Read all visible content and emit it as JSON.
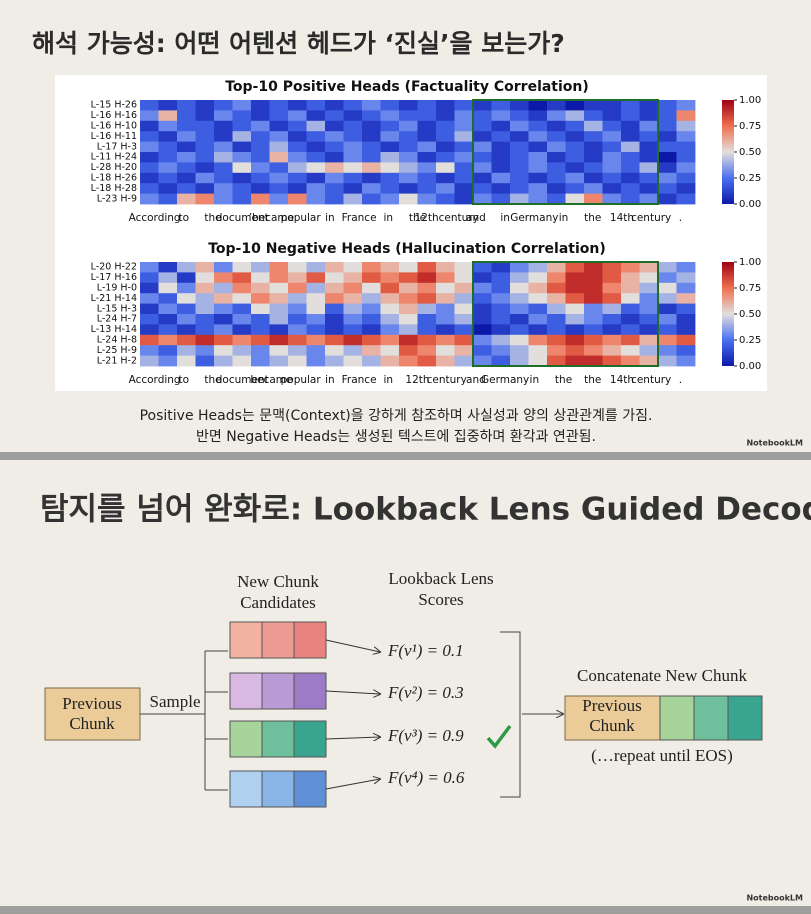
{
  "slides": [
    {
      "title": "해석 가능성: 어떤 어텐션 헤드가 ‘진실’을 보는가?",
      "caption": [
        "Positive Heads는 문맥(Context)을 강하게 참조하며 사실성과 양의 상관관계를 가짐.",
        "반면 Negative Heads는 생성된 텍스트에 집중하며 환각과 연관됨."
      ],
      "brand": "NotebookLM"
    },
    {
      "title": "탐지를 넘어 완화로: Lookback Lens Guided Decoding",
      "previous": [
        "Previous",
        "Chunk"
      ],
      "sample": "Sample",
      "candidates_title": [
        "New Chunk",
        "Candidates"
      ],
      "scores_title": [
        "Lookback Lens",
        "Scores"
      ],
      "candidates": [
        {
          "score": "F(v¹) = 0.1",
          "colors": [
            "#f3b19f",
            "#ee9b93",
            "#e8827f"
          ]
        },
        {
          "score": "F(v²) = 0.3",
          "colors": [
            "#d9b9e1",
            "#ba9bd6",
            "#9c7cc7"
          ]
        },
        {
          "score": "F(v³) = 0.9",
          "colors": [
            "#a7d49b",
            "#70bf9c",
            "#3aa58f"
          ]
        },
        {
          "score": "F(v⁴) = 0.6",
          "colors": [
            "#afd0ef",
            "#89b5e6",
            "#5f90d6"
          ]
        }
      ],
      "concat_title": "Concatenate New Chunk",
      "repeat": "(…repeat until EOS)",
      "brand": "NotebookLM"
    }
  ],
  "chart_data": [
    {
      "type": "heatmap",
      "title": "Top-10 Positive Heads (Factuality Correlation)",
      "rows": [
        "L-15 H-26",
        "L-16 H-16",
        "L-16 H-10",
        "L-16 H-11",
        "L-17 H-3",
        "L-11 H-24",
        "L-28 H-20",
        "L-18 H-26",
        "L-18 H-28",
        "L-23 H-9"
      ],
      "tokens": [
        "According",
        "to",
        "the",
        "document",
        "’became",
        "popular",
        "in",
        "France",
        "in",
        "the",
        "12thcentury",
        "and",
        "in",
        "Germany",
        "in",
        "the",
        "14th",
        "century",
        "."
      ],
      "values": [
        [
          0.2,
          0.1,
          0.2,
          0.1,
          0.2,
          0.3,
          0.1,
          0.2,
          0.1,
          0.2,
          0.1,
          0.2,
          0.3,
          0.2,
          0.1,
          0.2,
          0.1,
          0.2,
          0.1,
          0.2,
          0.1,
          0.0,
          0.1,
          0.0,
          0.1,
          0.1,
          0.2,
          0.1,
          0.2,
          0.3
        ],
        [
          0.3,
          0.6,
          0.2,
          0.1,
          0.3,
          0.2,
          0.1,
          0.2,
          0.3,
          0.1,
          0.2,
          0.1,
          0.2,
          0.3,
          0.2,
          0.2,
          0.1,
          0.3,
          0.2,
          0.3,
          0.2,
          0.1,
          0.3,
          0.4,
          0.2,
          0.1,
          0.2,
          0.1,
          0.2,
          0.7
        ],
        [
          0.1,
          0.3,
          0.2,
          0.2,
          0.1,
          0.2,
          0.3,
          0.1,
          0.2,
          0.4,
          0.1,
          0.2,
          0.1,
          0.2,
          0.3,
          0.1,
          0.2,
          0.3,
          0.2,
          0.1,
          0.3,
          0.2,
          0.1,
          0.2,
          0.4,
          0.2,
          0.1,
          0.3,
          0.2,
          0.4
        ],
        [
          0.2,
          0.1,
          0.3,
          0.2,
          0.1,
          0.4,
          0.2,
          0.3,
          0.1,
          0.2,
          0.3,
          0.2,
          0.1,
          0.3,
          0.2,
          0.1,
          0.2,
          0.4,
          0.1,
          0.2,
          0.1,
          0.3,
          0.2,
          0.1,
          0.2,
          0.3,
          0.1,
          0.2,
          0.1,
          0.3
        ],
        [
          0.3,
          0.2,
          0.1,
          0.2,
          0.3,
          0.1,
          0.2,
          0.4,
          0.2,
          0.1,
          0.2,
          0.3,
          0.2,
          0.1,
          0.2,
          0.3,
          0.1,
          0.2,
          0.3,
          0.1,
          0.2,
          0.1,
          0.3,
          0.2,
          0.1,
          0.2,
          0.4,
          0.1,
          0.2,
          0.2
        ],
        [
          0.1,
          0.2,
          0.3,
          0.2,
          0.4,
          0.3,
          0.2,
          0.6,
          0.3,
          0.2,
          0.1,
          0.3,
          0.2,
          0.4,
          0.3,
          0.1,
          0.2,
          0.3,
          0.2,
          0.1,
          0.2,
          0.3,
          0.1,
          0.2,
          0.1,
          0.3,
          0.2,
          0.1,
          0.0,
          0.2
        ],
        [
          0.2,
          0.3,
          0.2,
          0.1,
          0.2,
          0.5,
          0.3,
          0.2,
          0.4,
          0.5,
          0.6,
          0.5,
          0.6,
          0.5,
          0.4,
          0.3,
          0.5,
          0.2,
          0.3,
          0.1,
          0.2,
          0.3,
          0.2,
          0.1,
          0.2,
          0.3,
          0.2,
          0.4,
          0.1,
          0.3
        ],
        [
          0.1,
          0.2,
          0.1,
          0.3,
          0.2,
          0.1,
          0.2,
          0.3,
          0.2,
          0.1,
          0.3,
          0.2,
          0.1,
          0.2,
          0.3,
          0.2,
          0.1,
          0.2,
          0.1,
          0.3,
          0.2,
          0.1,
          0.2,
          0.3,
          0.1,
          0.2,
          0.1,
          0.2,
          0.3,
          0.2
        ],
        [
          0.2,
          0.1,
          0.2,
          0.1,
          0.3,
          0.2,
          0.1,
          0.2,
          0.1,
          0.3,
          0.2,
          0.1,
          0.3,
          0.2,
          0.1,
          0.2,
          0.3,
          0.1,
          0.2,
          0.1,
          0.2,
          0.3,
          0.1,
          0.2,
          0.3,
          0.1,
          0.2,
          0.1,
          0.2,
          0.1
        ],
        [
          0.3,
          0.2,
          0.6,
          0.7,
          0.3,
          0.2,
          0.7,
          0.3,
          0.7,
          0.3,
          0.2,
          0.4,
          0.2,
          0.3,
          0.5,
          0.3,
          0.2,
          0.1,
          0.3,
          0.2,
          0.4,
          0.3,
          0.2,
          0.5,
          0.7,
          0.3,
          0.2,
          0.3,
          0.1,
          0.2
        ]
      ],
      "zlim": [
        0,
        1
      ],
      "zticks": [
        {
          "value": 0,
          "label": "0.00"
        },
        {
          "value": 0.25,
          "label": "0.25"
        },
        {
          "value": 0.5,
          "label": "0.50"
        },
        {
          "value": 0.75,
          "label": "0.75"
        },
        {
          "value": 1,
          "label": "1.00"
        }
      ]
    },
    {
      "type": "heatmap",
      "title": "Top-10 Negative Heads (Hallucination Correlation)",
      "rows": [
        "L-20 H-22",
        "L-17 H-16",
        "L-19 H-0",
        "L-21 H-14",
        "L-15 H-3",
        "L-24 H-7",
        "L-13 H-14",
        "L-24 H-8",
        "L-25 H-9",
        "L-21 H-2"
      ],
      "tokens": [
        "According",
        "to",
        "the",
        "document",
        "became",
        "popular",
        "in",
        "France",
        "in",
        "12th",
        "century",
        "and",
        "Germany",
        "in",
        "the",
        "the",
        "14th",
        "century",
        "."
      ],
      "values": [
        [
          0.3,
          0.1,
          0.4,
          0.6,
          0.3,
          0.5,
          0.4,
          0.7,
          0.5,
          0.4,
          0.6,
          0.5,
          0.7,
          0.6,
          0.5,
          0.8,
          0.6,
          0.5,
          0.2,
          0.1,
          0.3,
          0.4,
          0.6,
          0.8,
          0.9,
          0.8,
          0.7,
          0.6,
          0.4,
          0.3
        ],
        [
          0.2,
          0.4,
          0.1,
          0.5,
          0.7,
          0.8,
          0.5,
          0.7,
          0.6,
          0.8,
          0.5,
          0.6,
          0.8,
          0.7,
          0.8,
          0.9,
          0.7,
          0.5,
          0.1,
          0.2,
          0.4,
          0.5,
          0.7,
          0.9,
          0.9,
          0.8,
          0.6,
          0.5,
          0.3,
          0.4
        ],
        [
          0.1,
          0.5,
          0.3,
          0.6,
          0.4,
          0.7,
          0.6,
          0.5,
          0.7,
          0.4,
          0.6,
          0.7,
          0.5,
          0.8,
          0.6,
          0.7,
          0.5,
          0.6,
          0.3,
          0.2,
          0.5,
          0.6,
          0.8,
          0.9,
          0.9,
          0.7,
          0.6,
          0.4,
          0.5,
          0.3
        ],
        [
          0.3,
          0.2,
          0.5,
          0.4,
          0.6,
          0.5,
          0.7,
          0.6,
          0.4,
          0.5,
          0.7,
          0.6,
          0.4,
          0.6,
          0.7,
          0.8,
          0.6,
          0.4,
          0.2,
          0.3,
          0.4,
          0.5,
          0.6,
          0.8,
          0.9,
          0.8,
          0.5,
          0.3,
          0.4,
          0.6
        ],
        [
          0.1,
          0.3,
          0.2,
          0.4,
          0.3,
          0.2,
          0.5,
          0.4,
          0.3,
          0.5,
          0.2,
          0.4,
          0.3,
          0.5,
          0.6,
          0.4,
          0.3,
          0.5,
          0.1,
          0.2,
          0.3,
          0.2,
          0.4,
          0.5,
          0.3,
          0.4,
          0.2,
          0.3,
          0.1,
          0.2
        ],
        [
          0.2,
          0.1,
          0.3,
          0.2,
          0.1,
          0.3,
          0.2,
          0.4,
          0.2,
          0.3,
          0.1,
          0.3,
          0.2,
          0.4,
          0.5,
          0.2,
          0.3,
          0.4,
          0.1,
          0.2,
          0.1,
          0.3,
          0.2,
          0.4,
          0.3,
          0.2,
          0.1,
          0.2,
          0.3,
          0.1
        ],
        [
          0.1,
          0.2,
          0.1,
          0.2,
          0.3,
          0.1,
          0.2,
          0.1,
          0.3,
          0.2,
          0.1,
          0.2,
          0.1,
          0.3,
          0.4,
          0.2,
          0.1,
          0.2,
          0.0,
          0.1,
          0.2,
          0.1,
          0.2,
          0.1,
          0.2,
          0.1,
          0.2,
          0.1,
          0.2,
          0.1
        ],
        [
          0.8,
          0.7,
          0.8,
          0.9,
          0.8,
          0.7,
          0.8,
          0.9,
          0.8,
          0.7,
          0.8,
          0.9,
          0.8,
          0.7,
          0.9,
          0.8,
          0.7,
          0.8,
          0.3,
          0.4,
          0.5,
          0.7,
          0.8,
          0.9,
          0.8,
          0.7,
          0.8,
          0.6,
          0.7,
          0.8
        ],
        [
          0.3,
          0.2,
          0.4,
          0.3,
          0.5,
          0.4,
          0.3,
          0.5,
          0.4,
          0.3,
          0.5,
          0.4,
          0.6,
          0.5,
          0.8,
          0.7,
          0.5,
          0.6,
          0.2,
          0.3,
          0.4,
          0.5,
          0.7,
          0.8,
          0.7,
          0.6,
          0.5,
          0.4,
          0.3,
          0.2
        ],
        [
          0.4,
          0.3,
          0.5,
          0.2,
          0.4,
          0.5,
          0.3,
          0.4,
          0.5,
          0.3,
          0.4,
          0.5,
          0.4,
          0.6,
          0.7,
          0.8,
          0.6,
          0.4,
          0.3,
          0.2,
          0.4,
          0.5,
          0.8,
          0.9,
          0.9,
          0.8,
          0.7,
          0.6,
          0.4,
          0.3
        ]
      ],
      "zlim": [
        0,
        1
      ],
      "zticks": [
        {
          "value": 0,
          "label": "0.00"
        },
        {
          "value": 0.25,
          "label": "0.25"
        },
        {
          "value": 0.5,
          "label": "0.50"
        },
        {
          "value": 0.75,
          "label": "0.75"
        },
        {
          "value": 1,
          "label": "1.00"
        }
      ]
    }
  ]
}
